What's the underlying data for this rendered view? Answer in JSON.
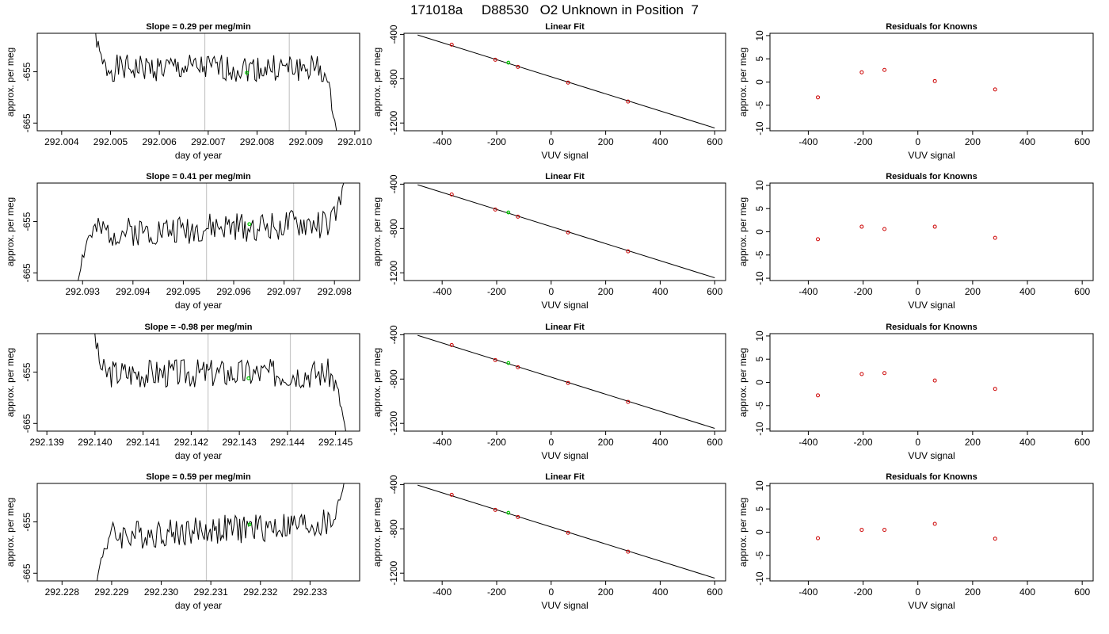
{
  "header": {
    "title": "171018a     D88530   O2 Unknown in Position  7"
  },
  "colors": {
    "line": "#000000",
    "known_point": "#cc0000",
    "unknown_point": "#00cc00",
    "window_line": "#c8c8c8"
  },
  "chart_data": [
    {
      "type": "line",
      "title": "Slope =  0.29  per meg/min",
      "xlabel": "day of year",
      "ylabel": "approx. per meg",
      "xlim": [
        292.0035,
        292.0101
      ],
      "ylim": [
        -666.5,
        -647.5
      ],
      "x_ticks": [
        292.004,
        292.005,
        292.006,
        292.007,
        292.008,
        292.009,
        292.01
      ],
      "x_tick_labels": [
        "292.004",
        "292.005",
        "292.006",
        "292.007",
        "292.008",
        "292.009",
        "292.010"
      ],
      "y_ticks": [
        -655,
        -665
      ],
      "y_tick_labels": [
        "-655",
        "-665"
      ],
      "window_lines": [
        292.00693,
        292.00866
      ],
      "series": [
        {
          "x_start": 292.0046,
          "x_end": 292.00965,
          "start": -640,
          "level": -654.3,
          "amp": 1.2,
          "slope": 0,
          "end_shape": "down",
          "seed": 1
        }
      ],
      "unknown_point": [
        292.00779,
        -655.2
      ]
    },
    {
      "type": "scatter",
      "title": "Linear Fit",
      "xlabel": "VUV signal",
      "ylabel": "approx. per meg",
      "xlim": [
        -540,
        640
      ],
      "ylim": [
        -1270,
        -390
      ],
      "x_ticks": [
        -400,
        -200,
        0,
        200,
        400,
        600
      ],
      "x_tick_labels": [
        "-400",
        "-200",
        "0",
        "200",
        "400",
        "600"
      ],
      "y_ticks": [
        -400,
        -800,
        -1200
      ],
      "y_tick_labels": [
        "-400",
        "-800",
        "-1200"
      ],
      "fit_line": {
        "x": [
          -490,
          600
        ],
        "y": [
          -405,
          -1245
        ]
      },
      "points": {
        "x": [
          -365,
          -205,
          -122,
          62,
          282
        ],
        "y": [
          -493,
          -629,
          -693,
          -835,
          -1006
        ]
      },
      "unknown_point": [
        -157,
        -655
      ]
    },
    {
      "type": "scatter",
      "title": "Residuals for Knowns",
      "xlabel": "VUV signal",
      "ylabel": "approx. per meg",
      "xlim": [
        -540,
        640
      ],
      "ylim": [
        -10.5,
        10.5
      ],
      "x_ticks": [
        -400,
        -200,
        0,
        200,
        400,
        600
      ],
      "x_tick_labels": [
        "-400",
        "-200",
        "0",
        "200",
        "400",
        "600"
      ],
      "y_ticks": [
        -10,
        -5,
        0,
        5,
        10
      ],
      "y_tick_labels": [
        "-10",
        "-5",
        "0",
        "5",
        "10"
      ],
      "points": {
        "x": [
          -365,
          -205,
          -122,
          62,
          282
        ],
        "y": [
          -3.3,
          2.1,
          2.6,
          0.2,
          -1.6
        ]
      }
    },
    {
      "type": "line",
      "title": "Slope =  0.41  per meg/min",
      "xlabel": "day of year",
      "ylabel": "approx. per meg",
      "xlim": [
        292.0921,
        292.0985
      ],
      "ylim": [
        -666.5,
        -647.5
      ],
      "x_ticks": [
        292.093,
        292.094,
        292.095,
        292.096,
        292.097,
        292.098
      ],
      "x_tick_labels": [
        "292.093",
        "292.094",
        "292.095",
        "292.096",
        "292.097",
        "292.098"
      ],
      "y_ticks": [
        -655,
        -665
      ],
      "y_tick_labels": [
        "-655",
        "-665"
      ],
      "window_lines": [
        292.09546,
        292.09719
      ],
      "series": [
        {
          "x_start": 292.0929,
          "x_end": 292.09828,
          "start": -667,
          "level": -656.3,
          "amp": 1.3,
          "slope": 1.0,
          "end_shape": "up",
          "seed": 2
        }
      ],
      "unknown_point": [
        292.09631,
        -655.5
      ]
    },
    {
      "type": "scatter",
      "title": "Linear Fit",
      "xlabel": "VUV signal",
      "ylabel": "approx. per meg",
      "xlim": [
        -540,
        640
      ],
      "ylim": [
        -1270,
        -390
      ],
      "x_ticks": [
        -400,
        -200,
        0,
        200,
        400,
        600
      ],
      "x_tick_labels": [
        "-400",
        "-200",
        "0",
        "200",
        "400",
        "600"
      ],
      "y_ticks": [
        -400,
        -800,
        -1200
      ],
      "y_tick_labels": [
        "-400",
        "-800",
        "-1200"
      ],
      "fit_line": {
        "x": [
          -490,
          600
        ],
        "y": [
          -405,
          -1245
        ]
      },
      "points": {
        "x": [
          -365,
          -205,
          -122,
          62,
          282
        ],
        "y": [
          -493,
          -629,
          -693,
          -835,
          -1006
        ]
      },
      "unknown_point": [
        -157,
        -655
      ]
    },
    {
      "type": "scatter",
      "title": "Residuals for Knowns",
      "xlabel": "VUV signal",
      "ylabel": "approx. per meg",
      "xlim": [
        -540,
        640
      ],
      "ylim": [
        -10.5,
        10.5
      ],
      "x_ticks": [
        -400,
        -200,
        0,
        200,
        400,
        600
      ],
      "x_tick_labels": [
        "-400",
        "-200",
        "0",
        "200",
        "400",
        "600"
      ],
      "y_ticks": [
        -10,
        -5,
        0,
        5,
        10
      ],
      "y_tick_labels": [
        "-10",
        "-5",
        "0",
        "5",
        "10"
      ],
      "points": {
        "x": [
          -365,
          -205,
          -122,
          62,
          282
        ],
        "y": [
          -1.6,
          1.1,
          0.6,
          1.1,
          -1.3
        ]
      }
    },
    {
      "type": "line",
      "title": "Slope =  -0.98  per meg/min",
      "xlabel": "day of year",
      "ylabel": "approx. per meg",
      "xlim": [
        292.1388,
        292.1455
      ],
      "ylim": [
        -666.5,
        -647.5
      ],
      "x_ticks": [
        292.139,
        292.14,
        292.141,
        292.142,
        292.143,
        292.144,
        292.145
      ],
      "x_tick_labels": [
        "292.139",
        "292.140",
        "292.141",
        "292.142",
        "292.143",
        "292.144",
        "292.145"
      ],
      "y_ticks": [
        -655,
        -665
      ],
      "y_tick_labels": [
        "-655",
        "-665"
      ],
      "window_lines": [
        292.14235,
        292.14406
      ],
      "series": [
        {
          "x_start": 292.1399,
          "x_end": 292.14525,
          "start": -640,
          "level": -655.2,
          "amp": 1.3,
          "slope": 0,
          "end_shape": "down",
          "seed": 3
        }
      ],
      "unknown_point": [
        292.14319,
        -656.2
      ]
    },
    {
      "type": "scatter",
      "title": "Linear Fit",
      "xlabel": "VUV signal",
      "ylabel": "approx. per meg",
      "xlim": [
        -540,
        640
      ],
      "ylim": [
        -1270,
        -390
      ],
      "x_ticks": [
        -400,
        -200,
        0,
        200,
        400,
        600
      ],
      "x_tick_labels": [
        "-400",
        "-200",
        "0",
        "200",
        "400",
        "600"
      ],
      "y_ticks": [
        -400,
        -800,
        -1200
      ],
      "y_tick_labels": [
        "-400",
        "-800",
        "-1200"
      ],
      "fit_line": {
        "x": [
          -490,
          600
        ],
        "y": [
          -405,
          -1245
        ]
      },
      "points": {
        "x": [
          -365,
          -205,
          -122,
          62,
          282
        ],
        "y": [
          -493,
          -629,
          -693,
          -835,
          -1006
        ]
      },
      "unknown_point": [
        -157,
        -655
      ]
    },
    {
      "type": "scatter",
      "title": "Residuals for Knowns",
      "xlabel": "VUV signal",
      "ylabel": "approx. per meg",
      "xlim": [
        -540,
        640
      ],
      "ylim": [
        -10.5,
        10.5
      ],
      "x_ticks": [
        -400,
        -200,
        0,
        200,
        400,
        600
      ],
      "x_tick_labels": [
        "-400",
        "-200",
        "0",
        "200",
        "400",
        "600"
      ],
      "y_ticks": [
        -10,
        -5,
        0,
        5,
        10
      ],
      "y_tick_labels": [
        "-10",
        "-5",
        "0",
        "5",
        "10"
      ],
      "points": {
        "x": [
          -365,
          -205,
          -122,
          62,
          282
        ],
        "y": [
          -2.8,
          1.8,
          2.0,
          0.4,
          -1.4
        ]
      }
    },
    {
      "type": "line",
      "title": "Slope =  0.59  per meg/min",
      "xlabel": "day of year",
      "ylabel": "approx. per meg",
      "xlim": [
        292.2275,
        292.234
      ],
      "ylim": [
        -666.5,
        -647.5
      ],
      "x_ticks": [
        292.228,
        292.229,
        292.23,
        292.231,
        292.232,
        292.233
      ],
      "x_tick_labels": [
        "292.228",
        "292.229",
        "292.230",
        "292.231",
        "292.232",
        "292.233"
      ],
      "y_ticks": [
        -655,
        -665
      ],
      "y_tick_labels": [
        "-655",
        "-665"
      ],
      "window_lines": [
        292.23091,
        292.23264
      ],
      "series": [
        {
          "x_start": 292.2287,
          "x_end": 292.23375,
          "start": -667,
          "level": -656.5,
          "amp": 1.3,
          "slope": 1.3,
          "end_shape": "up",
          "seed": 4
        }
      ],
      "unknown_point": [
        292.23178,
        -655.5
      ]
    },
    {
      "type": "scatter",
      "title": "Linear Fit",
      "xlabel": "VUV signal",
      "ylabel": "approx. per meg",
      "xlim": [
        -540,
        640
      ],
      "ylim": [
        -1270,
        -390
      ],
      "x_ticks": [
        -400,
        -200,
        0,
        200,
        400,
        600
      ],
      "x_tick_labels": [
        "-400",
        "-200",
        "0",
        "200",
        "400",
        "600"
      ],
      "y_ticks": [
        -400,
        -800,
        -1200
      ],
      "y_tick_labels": [
        "-400",
        "-800",
        "-1200"
      ],
      "fit_line": {
        "x": [
          -490,
          600
        ],
        "y": [
          -405,
          -1245
        ]
      },
      "points": {
        "x": [
          -365,
          -205,
          -122,
          62,
          282
        ],
        "y": [
          -493,
          -629,
          -693,
          -835,
          -1006
        ]
      },
      "unknown_point": [
        -157,
        -655
      ]
    },
    {
      "type": "scatter",
      "title": "Residuals for Knowns",
      "xlabel": "VUV signal",
      "ylabel": "approx. per meg",
      "xlim": [
        -540,
        640
      ],
      "ylim": [
        -10.5,
        10.5
      ],
      "x_ticks": [
        -400,
        -200,
        0,
        200,
        400,
        600
      ],
      "x_tick_labels": [
        "-400",
        "-200",
        "0",
        "200",
        "400",
        "600"
      ],
      "y_ticks": [
        -10,
        -5,
        0,
        5,
        10
      ],
      "y_tick_labels": [
        "-10",
        "-5",
        "0",
        "5",
        "10"
      ],
      "points": {
        "x": [
          -365,
          -205,
          -122,
          62,
          282
        ],
        "y": [
          -1.3,
          0.5,
          0.5,
          1.8,
          -1.4
        ]
      }
    }
  ]
}
